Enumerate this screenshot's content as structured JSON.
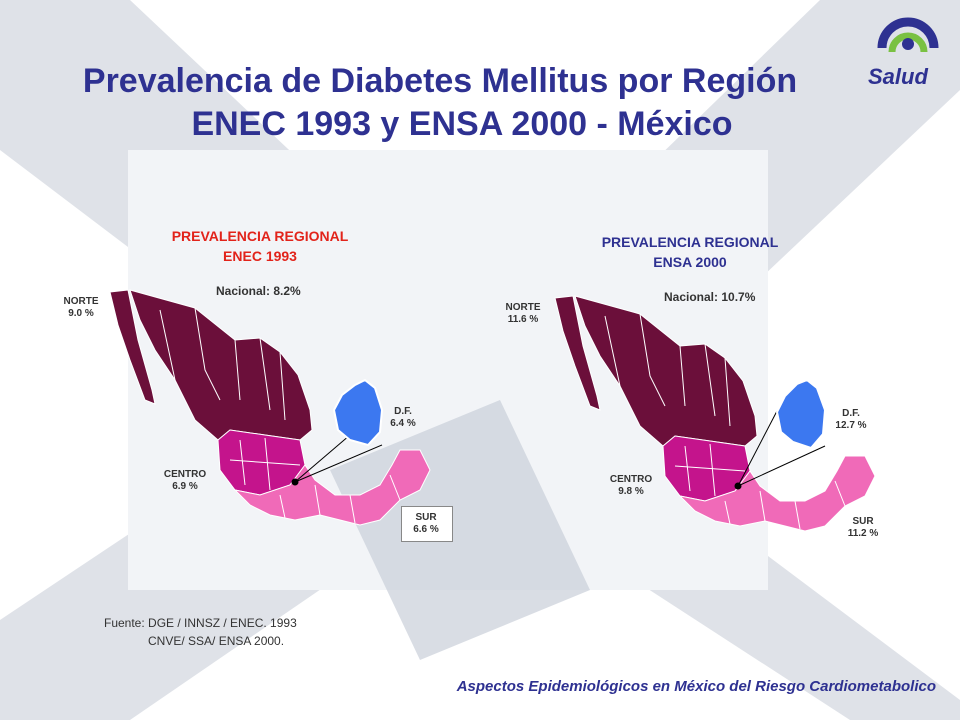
{
  "title": {
    "line1": "Prevalencia de Diabetes Mellitus por Región",
    "line2": "ENEC 1993 y ENSA 2000 - México"
  },
  "logo": {
    "text": "Salud",
    "icon": "salud-swirl-logo"
  },
  "left_map": {
    "heading1": "PREVALENCIA  REGIONAL",
    "heading2": "ENEC  1993",
    "national": "Nacional: 8.2%",
    "norte": {
      "label": "NORTE",
      "value": "9.0 %"
    },
    "centro": {
      "label": "CENTRO",
      "value": "6.9 %"
    },
    "df": {
      "label": "D.F.",
      "value": "6.4 %"
    },
    "sur": {
      "label": "SUR",
      "value": "6.6 %"
    }
  },
  "right_map": {
    "heading1": "PREVALENCIA  REGIONAL",
    "heading2": "ENSA 2000",
    "national": "Nacional: 10.7%",
    "norte": {
      "label": "NORTE",
      "value": "11.6 %"
    },
    "centro": {
      "label": "CENTRO",
      "value": "9.8 %"
    },
    "df": {
      "label": "D.F.",
      "value": "12.7 %"
    },
    "sur": {
      "label": "SUR",
      "value": "11.2 %"
    }
  },
  "source": {
    "line1": "Fuente: DGE / INNSZ / ENEC. 1993",
    "line2": "CNVE/ SSA/ ENSA 2000."
  },
  "footer": "Aspectos Epidemiológicos en México del Riesgo Cardiometabolico",
  "colors": {
    "norte": "#6b0f3a",
    "centro": "#c4148c",
    "sur": "#f06ab8",
    "df": "#3c78f0",
    "title": "#2e3191",
    "heading": "#e2231a"
  }
}
